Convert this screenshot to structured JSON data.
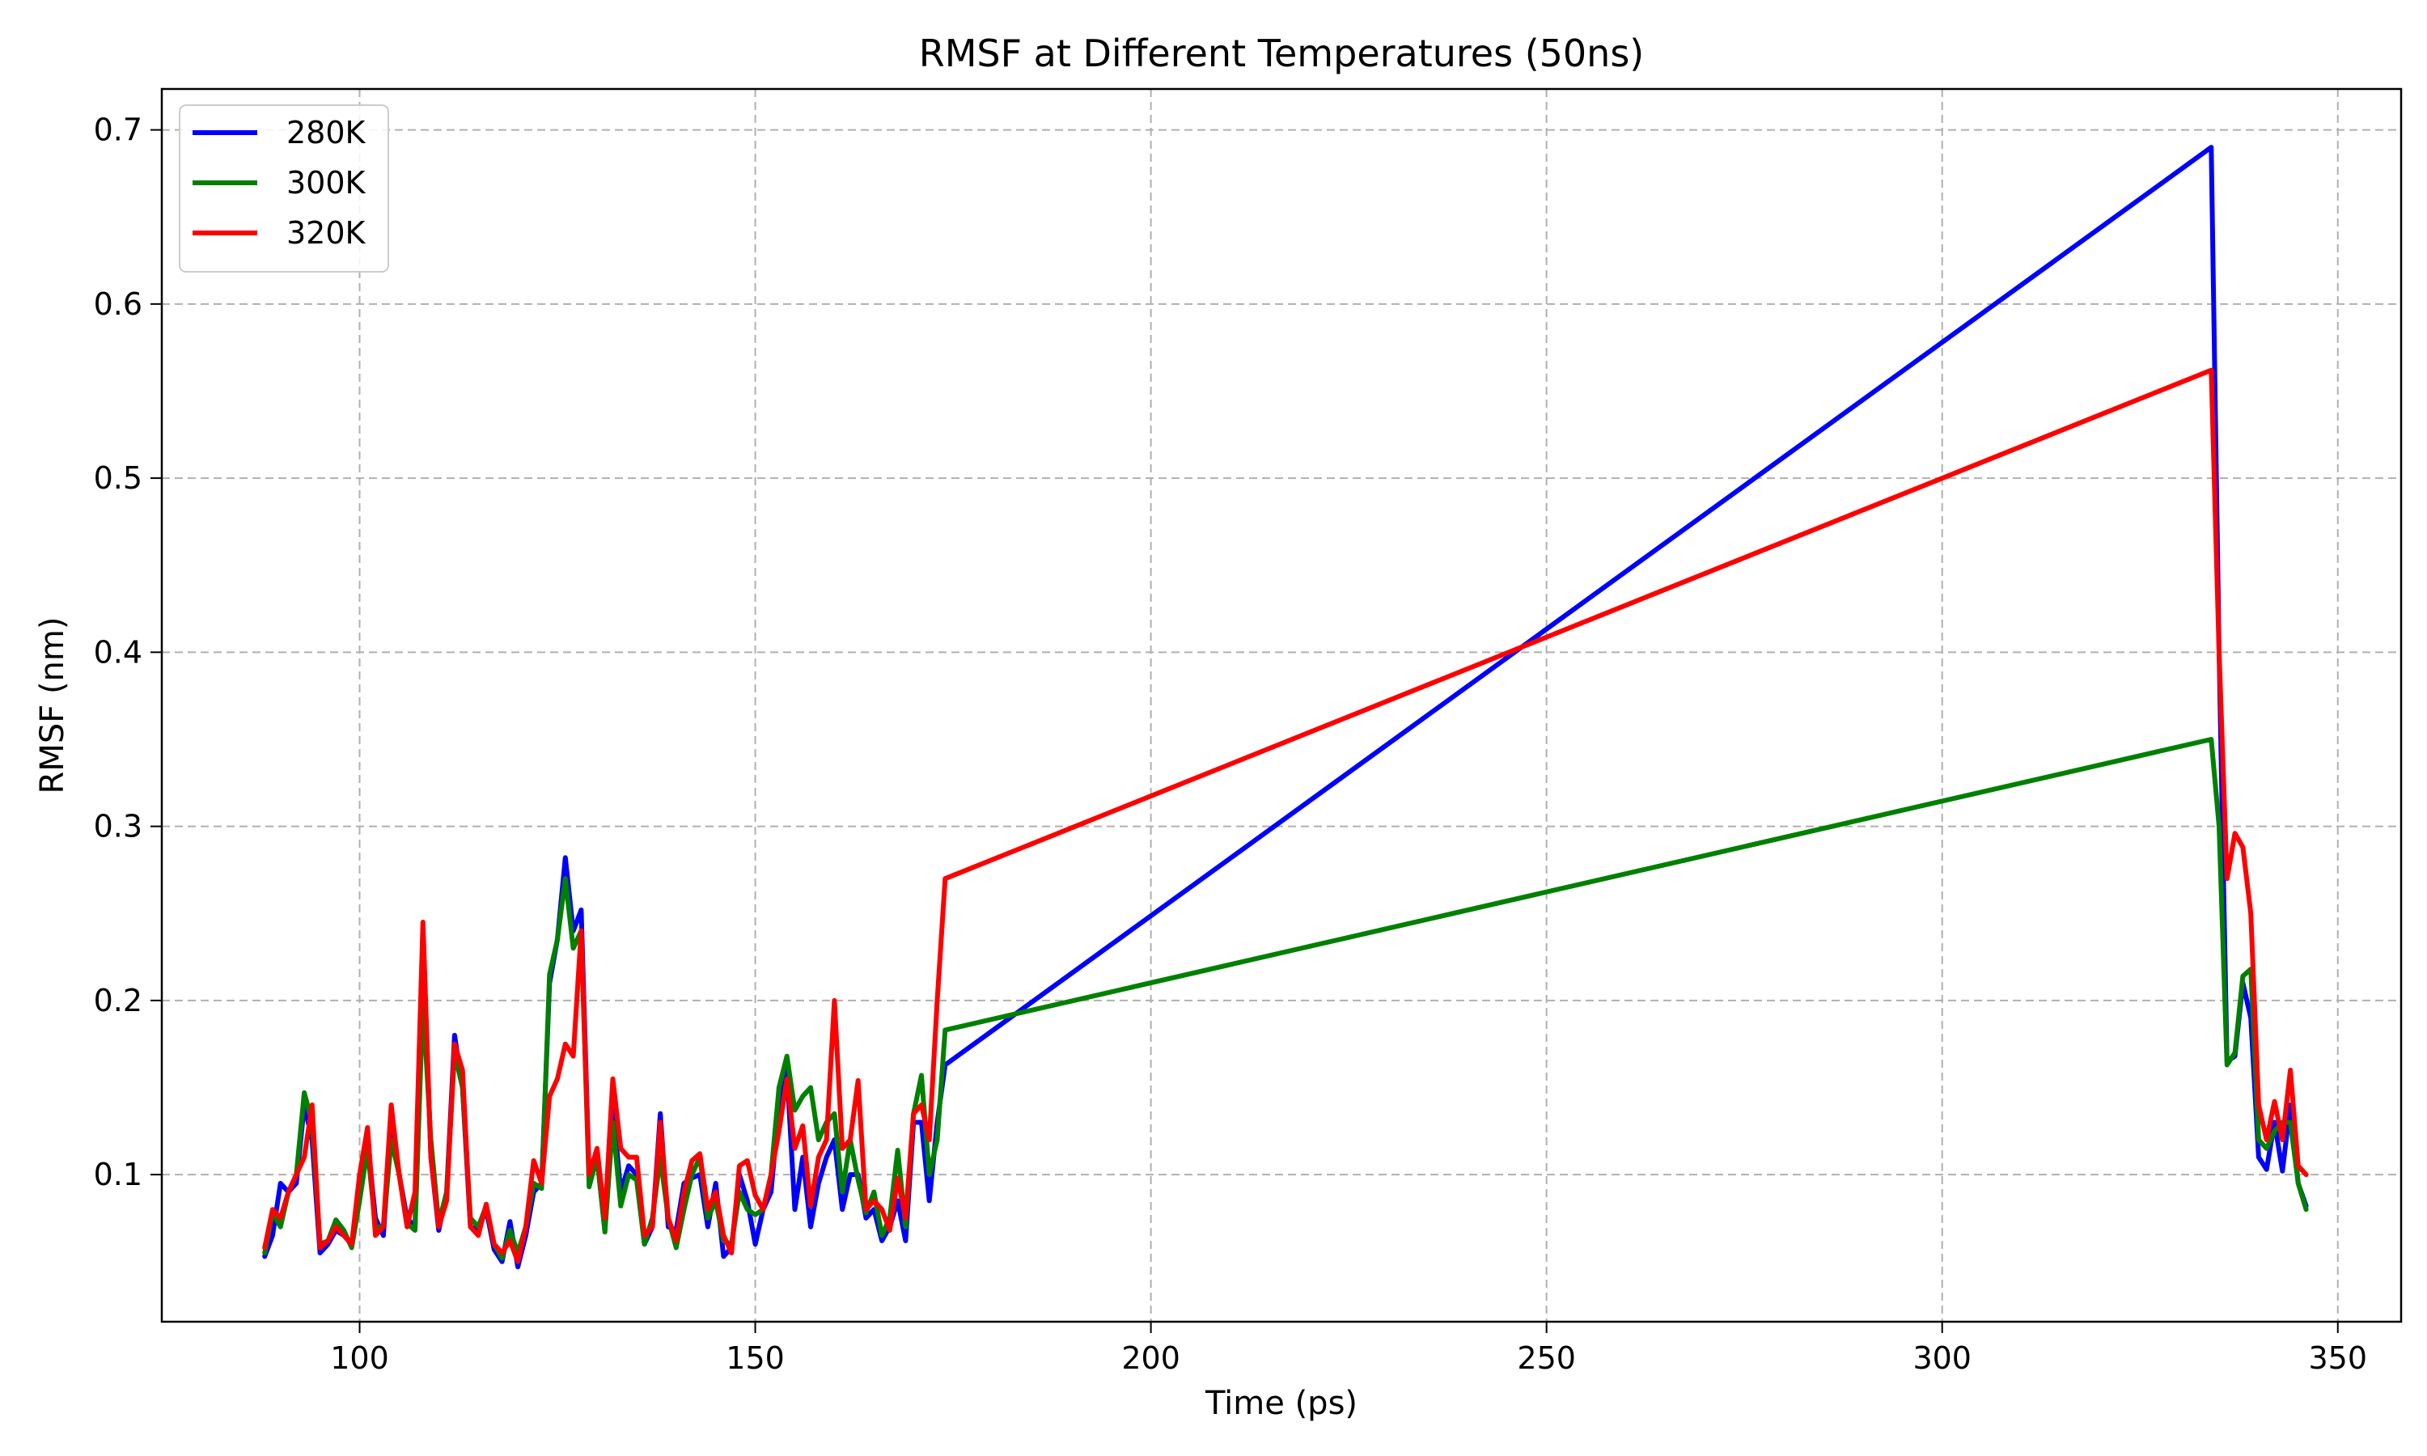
{
  "chart_data": {
    "type": "line",
    "title": "RMSF at Different Temperatures (50ns)",
    "xlabel": "Time (ps)",
    "ylabel": "RMSF (nm)",
    "xlim": [
      75,
      358
    ],
    "ylim": [
      0.0155,
      0.7235
    ],
    "xticks": [
      100,
      150,
      200,
      250,
      300,
      350
    ],
    "xtick_labels": [
      "100",
      "150",
      "200",
      "250",
      "300",
      "350"
    ],
    "yticks": [
      0.1,
      0.2,
      0.3,
      0.4,
      0.5,
      0.6,
      0.7
    ],
    "ytick_labels": [
      "0.1",
      "0.2",
      "0.3",
      "0.4",
      "0.5",
      "0.6",
      "0.7"
    ],
    "grid": true,
    "legend_position": "upper-left",
    "x": [
      88,
      89,
      90,
      91,
      92,
      93,
      94,
      95,
      96,
      97,
      98,
      99,
      100,
      101,
      102,
      103,
      104,
      105,
      106,
      107,
      108,
      109,
      110,
      111,
      112,
      113,
      114,
      115,
      116,
      117,
      118,
      119,
      120,
      121,
      122,
      123,
      124,
      125,
      126,
      127,
      128,
      129,
      130,
      131,
      132,
      133,
      134,
      135,
      136,
      137,
      138,
      139,
      140,
      141,
      142,
      143,
      144,
      145,
      146,
      147,
      148,
      149,
      150,
      151,
      152,
      153,
      154,
      155,
      156,
      157,
      158,
      159,
      160,
      161,
      162,
      163,
      164,
      165,
      166,
      167,
      168,
      169,
      170,
      171,
      172,
      173,
      174,
      334,
      335,
      336,
      337,
      338,
      339,
      340,
      341,
      342,
      343,
      344,
      345,
      346
    ],
    "series": [
      {
        "name": "280K",
        "color": "#0000ff",
        "values": [
          0.053,
          0.065,
          0.095,
          0.09,
          0.095,
          0.14,
          0.12,
          0.055,
          0.06,
          0.068,
          0.065,
          0.06,
          0.09,
          0.12,
          0.075,
          0.065,
          0.13,
          0.1,
          0.075,
          0.07,
          0.24,
          0.11,
          0.068,
          0.09,
          0.18,
          0.15,
          0.07,
          0.068,
          0.08,
          0.057,
          0.05,
          0.073,
          0.047,
          0.065,
          0.09,
          0.095,
          0.21,
          0.235,
          0.282,
          0.24,
          0.252,
          0.1,
          0.11,
          0.068,
          0.14,
          0.09,
          0.105,
          0.1,
          0.06,
          0.07,
          0.135,
          0.07,
          0.068,
          0.095,
          0.098,
          0.1,
          0.07,
          0.095,
          0.053,
          0.058,
          0.1,
          0.085,
          0.06,
          0.08,
          0.09,
          0.14,
          0.16,
          0.08,
          0.11,
          0.07,
          0.095,
          0.11,
          0.12,
          0.08,
          0.1,
          0.1,
          0.075,
          0.08,
          0.062,
          0.07,
          0.085,
          0.062,
          0.13,
          0.13,
          0.085,
          0.13,
          0.163,
          0.69,
          0.4,
          0.165,
          0.168,
          0.21,
          0.19,
          0.11,
          0.103,
          0.13,
          0.102,
          0.14,
          0.095,
          0.082
        ]
      },
      {
        "name": "300K",
        "color": "#008000",
        "values": [
          0.055,
          0.078,
          0.07,
          0.09,
          0.1,
          0.147,
          0.13,
          0.06,
          0.062,
          0.074,
          0.068,
          0.058,
          0.085,
          0.115,
          0.07,
          0.07,
          0.12,
          0.1,
          0.072,
          0.068,
          0.2,
          0.12,
          0.072,
          0.09,
          0.17,
          0.15,
          0.075,
          0.07,
          0.082,
          0.06,
          0.052,
          0.068,
          0.055,
          0.07,
          0.095,
          0.092,
          0.215,
          0.235,
          0.27,
          0.23,
          0.24,
          0.093,
          0.11,
          0.067,
          0.13,
          0.082,
          0.1,
          0.097,
          0.06,
          0.075,
          0.11,
          0.075,
          0.058,
          0.08,
          0.1,
          0.11,
          0.075,
          0.085,
          0.062,
          0.06,
          0.09,
          0.08,
          0.077,
          0.08,
          0.1,
          0.15,
          0.168,
          0.137,
          0.145,
          0.15,
          0.12,
          0.13,
          0.135,
          0.09,
          0.12,
          0.097,
          0.078,
          0.09,
          0.065,
          0.075,
          0.114,
          0.07,
          0.135,
          0.157,
          0.1,
          0.12,
          0.183,
          0.35,
          0.3,
          0.163,
          0.17,
          0.214,
          0.218,
          0.12,
          0.115,
          0.125,
          0.13,
          0.13,
          0.095,
          0.08
        ]
      },
      {
        "name": "320K",
        "color": "#ff0000",
        "values": [
          0.058,
          0.08,
          0.075,
          0.09,
          0.1,
          0.11,
          0.14,
          0.058,
          0.062,
          0.07,
          0.065,
          0.06,
          0.1,
          0.127,
          0.065,
          0.07,
          0.14,
          0.1,
          0.07,
          0.09,
          0.245,
          0.11,
          0.07,
          0.085,
          0.175,
          0.16,
          0.07,
          0.065,
          0.083,
          0.06,
          0.055,
          0.062,
          0.05,
          0.07,
          0.108,
          0.095,
          0.145,
          0.155,
          0.175,
          0.168,
          0.24,
          0.1,
          0.115,
          0.075,
          0.155,
          0.115,
          0.11,
          0.11,
          0.065,
          0.07,
          0.13,
          0.075,
          0.062,
          0.09,
          0.108,
          0.112,
          0.08,
          0.09,
          0.065,
          0.055,
          0.105,
          0.108,
          0.088,
          0.08,
          0.1,
          0.125,
          0.155,
          0.115,
          0.128,
          0.082,
          0.11,
          0.12,
          0.2,
          0.115,
          0.12,
          0.154,
          0.08,
          0.085,
          0.08,
          0.068,
          0.098,
          0.075,
          0.135,
          0.14,
          0.12,
          0.2,
          0.27,
          0.562,
          0.4,
          0.27,
          0.296,
          0.288,
          0.25,
          0.14,
          0.12,
          0.142,
          0.12,
          0.16,
          0.105,
          0.1
        ]
      }
    ]
  }
}
